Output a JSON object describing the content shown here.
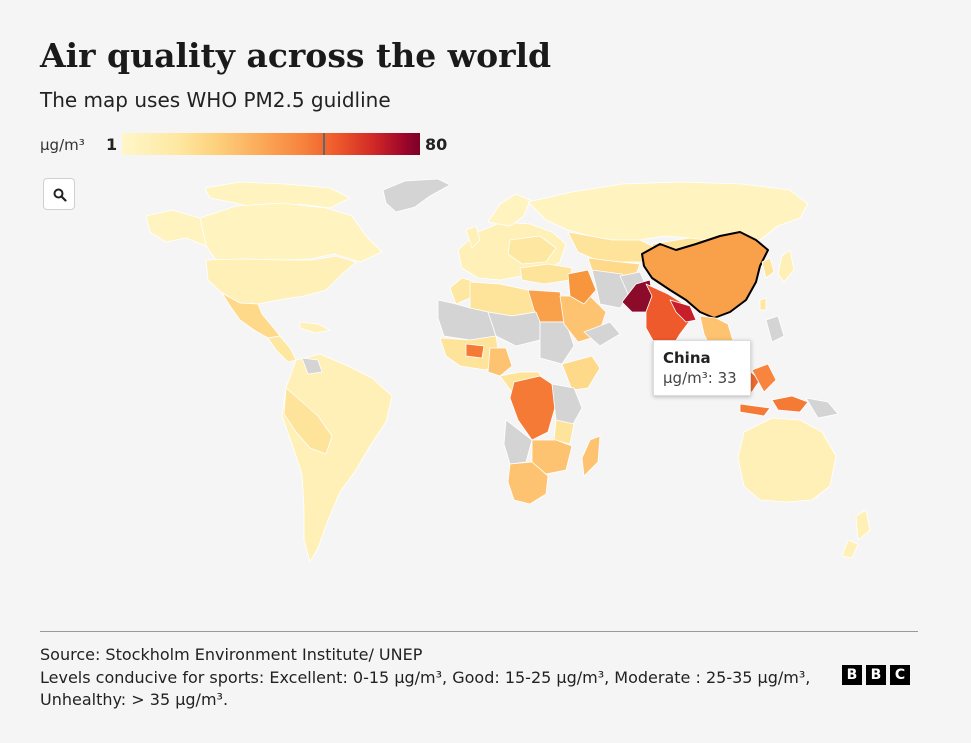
{
  "header": {
    "title": "Air quality across the world",
    "subtitle": "The map uses WHO PM2.5 guidline"
  },
  "legend": {
    "unit": "µg/m³",
    "min": "1",
    "max": "80",
    "colors": [
      "#fff6c9",
      "#fdd07c",
      "#f7853f",
      "#d22a26",
      "#7c0027"
    ]
  },
  "controls": {
    "zoom_icon": "search-icon"
  },
  "tooltip": {
    "country": "China",
    "value_text": "µg/m³: 33"
  },
  "footer": {
    "source": "Source: Stockholm Environment Institute/ UNEP",
    "notes": "Levels conducive for sports: Excellent: 0-15 µg/m³, Good: 15-25 µg/m³, Moderate : 25-35 µg/m³, Unhealthy: > 35 µg/m³.",
    "logo": [
      "B",
      "B",
      "C"
    ]
  }
}
